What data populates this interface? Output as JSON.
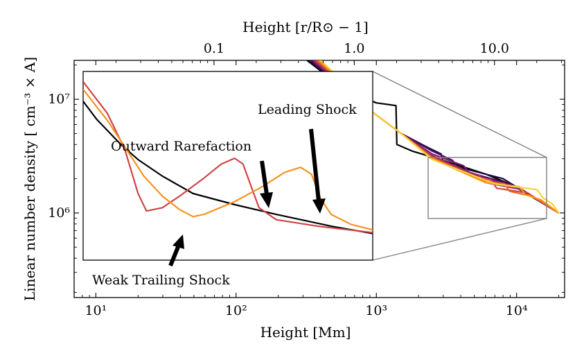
{
  "chart_data": {
    "type": "line",
    "xlabel": "Height [Mm]",
    "x2label": "Height [r/R⊙ − 1]",
    "ylabel": "Linear number density  [ cm⁻³ × A]",
    "xscale": "log",
    "yscale": "log",
    "xlim": [
      7,
      22000
    ],
    "ylim": [
      180000,
      22000000
    ],
    "x_ticks": [
      "10¹",
      "10²",
      "10³",
      "10⁴"
    ],
    "x2_ticks": [
      "0.1",
      "1.0",
      "10.0"
    ],
    "y_ticks": [
      "10⁶",
      "10⁷"
    ],
    "main_series": [
      {
        "color": "#000000",
        "points": [
          [
            320,
            22000000
          ],
          [
            420,
            17000000
          ],
          [
            600,
            12000000
          ],
          [
            1000,
            9300000
          ],
          [
            1380,
            8800000
          ],
          [
            1400,
            4000000
          ],
          [
            1800,
            3500000
          ],
          [
            3000,
            2900000
          ],
          [
            6000,
            2200000
          ],
          [
            10000,
            1700000
          ],
          [
            20000,
            1000000
          ]
        ]
      },
      {
        "color": "#1b0c41",
        "points": [
          [
            330,
            22000000
          ],
          [
            430,
            17000000
          ],
          [
            600,
            12000000
          ],
          [
            900,
            8000000
          ],
          [
            1500,
            5000000
          ],
          [
            2200,
            3900000
          ],
          [
            2900,
            3300000
          ],
          [
            3000,
            2800000
          ],
          [
            4000,
            2500000
          ],
          [
            8000,
            2000000
          ],
          [
            20000,
            1000000
          ]
        ]
      },
      {
        "color": "#4a0c6b",
        "points": [
          [
            340,
            22000000
          ],
          [
            440,
            17000000
          ],
          [
            600,
            12000000
          ],
          [
            900,
            8000000
          ],
          [
            1500,
            5000000
          ],
          [
            2500,
            3500000
          ],
          [
            3500,
            2900000
          ],
          [
            3800,
            2500000
          ],
          [
            5000,
            2200000
          ],
          [
            9000,
            1800000
          ],
          [
            20000,
            1000000
          ]
        ]
      },
      {
        "color": "#781c6d",
        "points": [
          [
            350,
            22000000
          ],
          [
            450,
            17000000
          ],
          [
            600,
            12000000
          ],
          [
            900,
            8000000
          ],
          [
            1500,
            5000000
          ],
          [
            2500,
            3300000
          ],
          [
            4200,
            2600000
          ],
          [
            4600,
            2250000
          ],
          [
            6000,
            2000000
          ],
          [
            10000,
            1700000
          ],
          [
            20000,
            1000000
          ]
        ]
      },
      {
        "color": "#a52c60",
        "points": [
          [
            360,
            22000000
          ],
          [
            460,
            17000000
          ],
          [
            600,
            12000000
          ],
          [
            900,
            8000000
          ],
          [
            1500,
            5000000
          ],
          [
            2500,
            3200000
          ],
          [
            4500,
            2300000
          ],
          [
            5400,
            2150000
          ],
          [
            6000,
            1850000
          ],
          [
            11000,
            1600000
          ],
          [
            20000,
            1000000
          ]
        ]
      },
      {
        "color": "#cf4446",
        "points": [
          [
            370,
            22000000
          ],
          [
            470,
            17000000
          ],
          [
            600,
            12000000
          ],
          [
            900,
            8000000
          ],
          [
            1500,
            5000000
          ],
          [
            2500,
            3100000
          ],
          [
            5000,
            2100000
          ],
          [
            6600,
            1950000
          ],
          [
            7200,
            1650000
          ],
          [
            12000,
            1500000
          ],
          [
            20000,
            1000000
          ]
        ]
      },
      {
        "color": "#ed6925",
        "points": [
          [
            380,
            22000000
          ],
          [
            480,
            17000000
          ],
          [
            600,
            12000000
          ],
          [
            900,
            8000000
          ],
          [
            1500,
            5000000
          ],
          [
            2500,
            3050000
          ],
          [
            5500,
            1950000
          ],
          [
            8200,
            1800000
          ],
          [
            8900,
            1550000
          ],
          [
            13000,
            1400000
          ],
          [
            20000,
            1000000
          ]
        ]
      },
      {
        "color": "#fb9b06",
        "points": [
          [
            390,
            22000000
          ],
          [
            490,
            17000000
          ],
          [
            600,
            12000000
          ],
          [
            900,
            8000000
          ],
          [
            1500,
            5000000
          ],
          [
            2500,
            3000000
          ],
          [
            6000,
            1850000
          ],
          [
            10500,
            1700000
          ],
          [
            11500,
            1450000
          ],
          [
            15000,
            1300000
          ],
          [
            20000,
            1000000
          ]
        ]
      },
      {
        "color": "#f7d13d",
        "points": [
          [
            400,
            22000000
          ],
          [
            500,
            17000000
          ],
          [
            600,
            12000000
          ],
          [
            900,
            8000000
          ],
          [
            1500,
            5000000
          ],
          [
            2500,
            2950000
          ],
          [
            7000,
            1800000
          ],
          [
            14000,
            1600000
          ],
          [
            15500,
            1350000
          ],
          [
            18000,
            1200000
          ],
          [
            20000,
            1000000
          ]
        ]
      }
    ],
    "inset_series": [
      {
        "color": "#000000",
        "points": [
          [
            8,
            5.5
          ],
          [
            10,
            4.1
          ],
          [
            15,
            2.7
          ],
          [
            20,
            2.1
          ],
          [
            30,
            1.6
          ],
          [
            50,
            1.2
          ],
          [
            100,
            1.0
          ],
          [
            200,
            0.85
          ],
          [
            500,
            0.7
          ],
          [
            1000,
            0.62
          ]
        ]
      },
      {
        "color": "#cf4446",
        "points": [
          [
            8,
            7.6
          ],
          [
            12,
            4.5
          ],
          [
            16,
            2.5
          ],
          [
            20,
            1.2
          ],
          [
            23,
            0.9
          ],
          [
            30,
            0.95
          ],
          [
            40,
            1.15
          ],
          [
            60,
            1.55
          ],
          [
            80,
            1.95
          ],
          [
            100,
            2.15
          ],
          [
            115,
            1.95
          ],
          [
            130,
            1.4
          ],
          [
            150,
            0.95
          ],
          [
            200,
            0.78
          ],
          [
            400,
            0.7
          ],
          [
            1000,
            0.63
          ]
        ]
      },
      {
        "color": "#f7921e",
        "points": [
          [
            8,
            6.7
          ],
          [
            12,
            4.0
          ],
          [
            16,
            2.6
          ],
          [
            22,
            1.6
          ],
          [
            30,
            1.15
          ],
          [
            40,
            0.92
          ],
          [
            50,
            0.82
          ],
          [
            60,
            0.85
          ],
          [
            100,
            1.05
          ],
          [
            160,
            1.35
          ],
          [
            230,
            1.7
          ],
          [
            300,
            1.85
          ],
          [
            360,
            1.65
          ],
          [
            420,
            1.1
          ],
          [
            500,
            0.85
          ],
          [
            700,
            0.72
          ],
          [
            1000,
            0.66
          ]
        ]
      }
    ]
  },
  "annotations": {
    "leading_shock": "Leading Shock",
    "outward_rarefaction": "Outward Rarefaction",
    "weak_trailing_shock": "Weak Trailing Shock"
  },
  "colors": {
    "box": "#808080",
    "arrow": "#000000"
  }
}
